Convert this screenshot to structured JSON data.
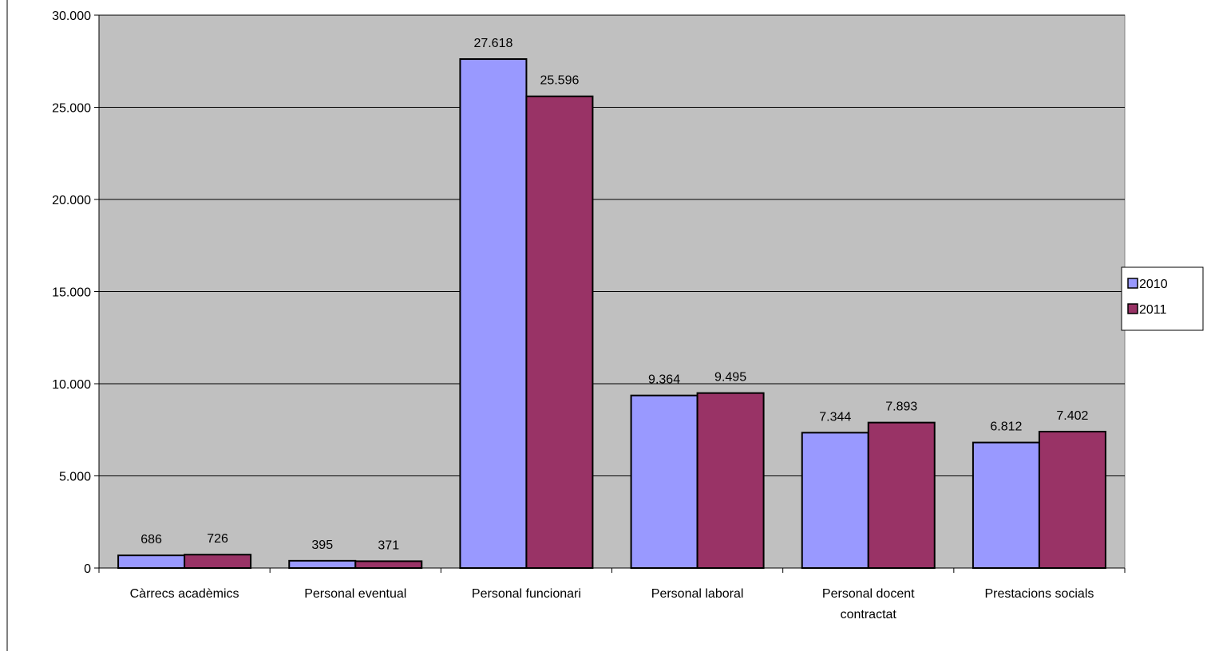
{
  "chart_data": {
    "type": "bar",
    "title": "",
    "xlabel": "",
    "ylabel": "",
    "ylim": [
      0,
      30000
    ],
    "yticks": [
      0,
      5000,
      10000,
      15000,
      20000,
      25000,
      30000
    ],
    "ytick_labels": [
      "0",
      "5.000",
      "10.000",
      "15.000",
      "20.000",
      "25.000",
      "30.000"
    ],
    "grid": "horizontal",
    "legend_position": "right",
    "categories": [
      [
        "Càrrecs acadèmics"
      ],
      [
        "Personal eventual"
      ],
      [
        "Personal funcionari"
      ],
      [
        "Personal laboral"
      ],
      [
        "Personal docent",
        "contractat"
      ],
      [
        "Prestacions socials"
      ]
    ],
    "series": [
      {
        "name": "2010",
        "color": "#9999ff",
        "values": [
          686,
          395,
          27618,
          9364,
          7344,
          6812
        ],
        "labels": [
          "686",
          "395",
          "27.618",
          "9.364",
          "7.344",
          "6.812"
        ]
      },
      {
        "name": "2011",
        "color": "#993366",
        "values": [
          726,
          371,
          25596,
          9495,
          7893,
          7402
        ],
        "labels": [
          "726",
          "371",
          "25.596",
          "9.495",
          "7.893",
          "7.402"
        ]
      }
    ],
    "plot_background": "#c0c0c0"
  }
}
